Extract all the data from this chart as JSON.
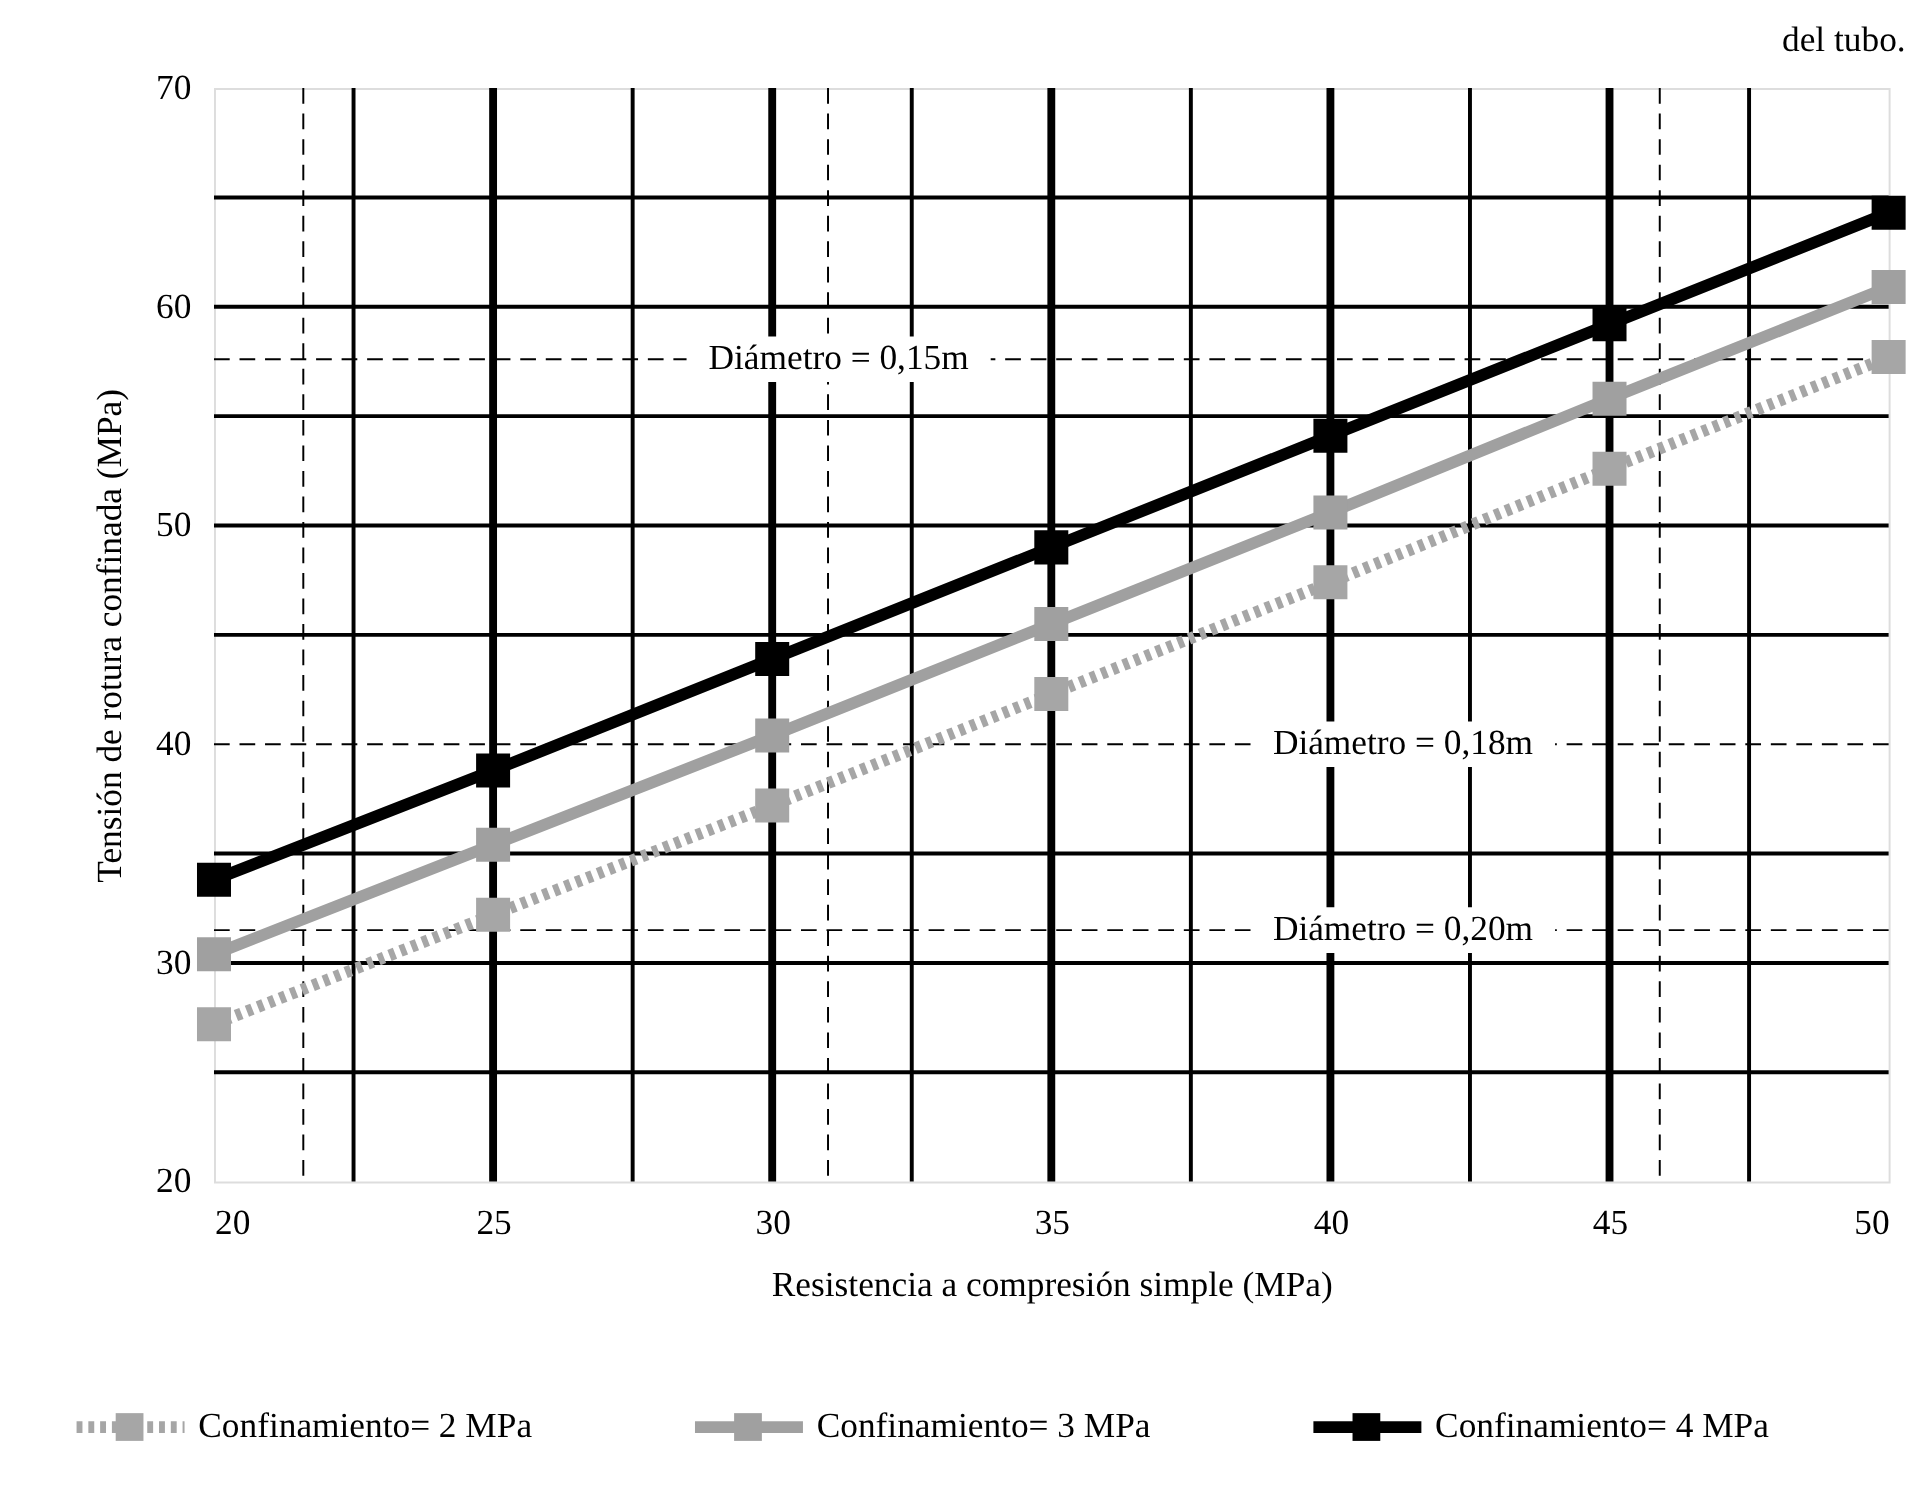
{
  "chart_data": {
    "type": "line",
    "title": "del tubo.",
    "xlabel": "Resistencia a compresión simple (MPa)",
    "ylabel": "Tensión de rotura confinada (MPa)",
    "x": [
      20,
      25,
      30,
      35,
      40,
      45,
      50
    ],
    "series": [
      {
        "name": "Confinamiento= 2 MPa",
        "color": "#a6a6a6",
        "line_style": "dotted",
        "values": [
          27.2,
          32.2,
          37.2,
          42.3,
          47.4,
          52.6,
          57.7
        ]
      },
      {
        "name": "Confinamiento= 3 MPa",
        "color": "#a0a0a0",
        "line_style": "solid",
        "values": [
          30.4,
          35.4,
          40.4,
          45.5,
          50.6,
          55.8,
          60.9
        ]
      },
      {
        "name": "Confinamiento= 4 MPa",
        "color": "#000000",
        "line_style": "solid",
        "values": [
          33.8,
          38.8,
          43.9,
          49.0,
          54.1,
          59.2,
          64.3
        ]
      }
    ],
    "xlim": [
      20,
      50
    ],
    "xticks": [
      20,
      25,
      30,
      35,
      40,
      45,
      50
    ],
    "ylim": [
      20,
      70
    ],
    "yticks": [
      20,
      30,
      40,
      50,
      60,
      70
    ],
    "ref_lines": [
      {
        "axis": "y",
        "value": 57.6,
        "color": "#000000",
        "line_style": "dashed"
      },
      {
        "axis": "y",
        "value": 40,
        "color": "#000000",
        "line_style": "dashed"
      },
      {
        "axis": "y",
        "value": 31.5,
        "color": "#000000",
        "line_style": "dashed"
      },
      {
        "axis": "x",
        "value": 21.6,
        "color": "#000000",
        "line_style": "dashed"
      },
      {
        "axis": "x",
        "value": 31.0,
        "color": "#000000",
        "line_style": "dashed"
      },
      {
        "axis": "x",
        "value": 45.9,
        "color": "#000000",
        "line_style": "dashed"
      }
    ],
    "annotations": [
      {
        "text": "Diámetro = 0,15m",
        "y": 57.6
      },
      {
        "text": "Diámetro = 0,18m",
        "y": 40
      },
      {
        "text": "Diámetro = 0,20m",
        "y": 31.5
      }
    ],
    "grid": true,
    "legend": "bottom",
    "marker": "square"
  }
}
